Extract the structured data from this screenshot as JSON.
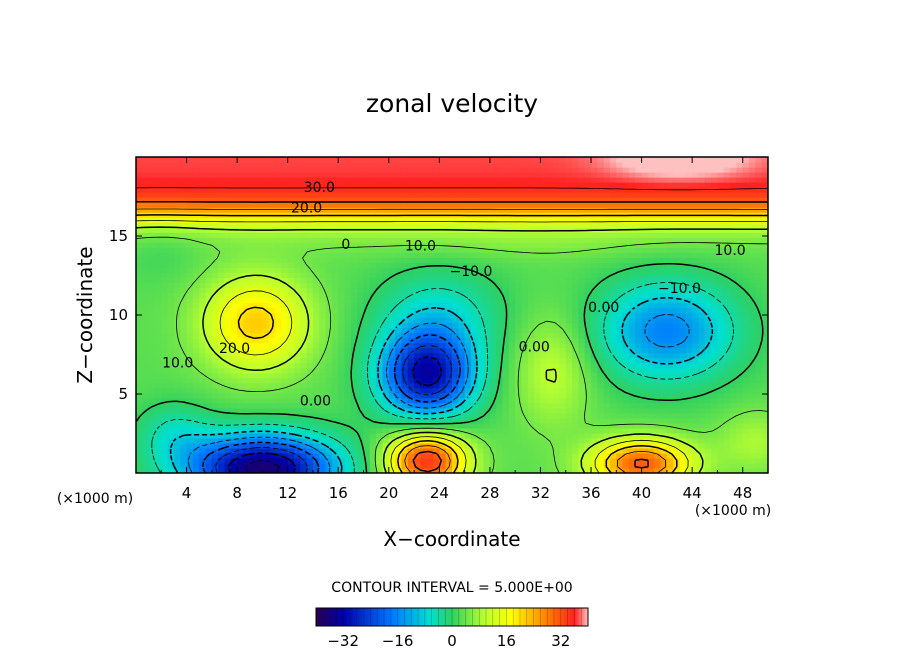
{
  "chart_data": {
    "type": "heatmap",
    "title": "zonal velocity",
    "xlabel": "X−coordinate",
    "ylabel": "Z−coordinate",
    "x_unit_left": "(×1000 m)",
    "x_unit_right": "(×1000 m)",
    "xlim": [
      0,
      50
    ],
    "ylim": [
      0,
      20
    ],
    "x_ticks": [
      4,
      8,
      12,
      16,
      20,
      24,
      28,
      32,
      36,
      40,
      44,
      48
    ],
    "y_ticks": [
      5,
      10,
      15
    ],
    "contour_interval_text": "CONTOUR INTERVAL = 5.000E+00",
    "colorbar": {
      "min": -40,
      "max": 40,
      "ticks": [
        -32,
        -16,
        0,
        16,
        32
      ],
      "tick_labels": [
        "−32",
        "−16",
        "0",
        "16",
        "32"
      ]
    },
    "contour_labels": [
      {
        "text": "30.0",
        "x": 14.5,
        "y": 18.1
      },
      {
        "text": "20.0",
        "x": 13.5,
        "y": 16.8
      },
      {
        "text": "10.0",
        "x": 22.5,
        "y": 14.4
      },
      {
        "text": "10.0",
        "x": 47.0,
        "y": 14.1
      },
      {
        "text": "−10.0",
        "x": 26.5,
        "y": 12.8
      },
      {
        "text": "−10.0",
        "x": 43.0,
        "y": 11.7
      },
      {
        "text": "20.0",
        "x": 7.8,
        "y": 7.9
      },
      {
        "text": "10.0",
        "x": 3.3,
        "y": 7.0
      },
      {
        "text": "0.00",
        "x": 14.2,
        "y": 4.6
      },
      {
        "text": "0.00",
        "x": 31.5,
        "y": 8.0
      },
      {
        "text": "0.00",
        "x": 37.0,
        "y": 10.5
      },
      {
        "text": "0",
        "x": 16.6,
        "y": 14.5
      }
    ]
  }
}
